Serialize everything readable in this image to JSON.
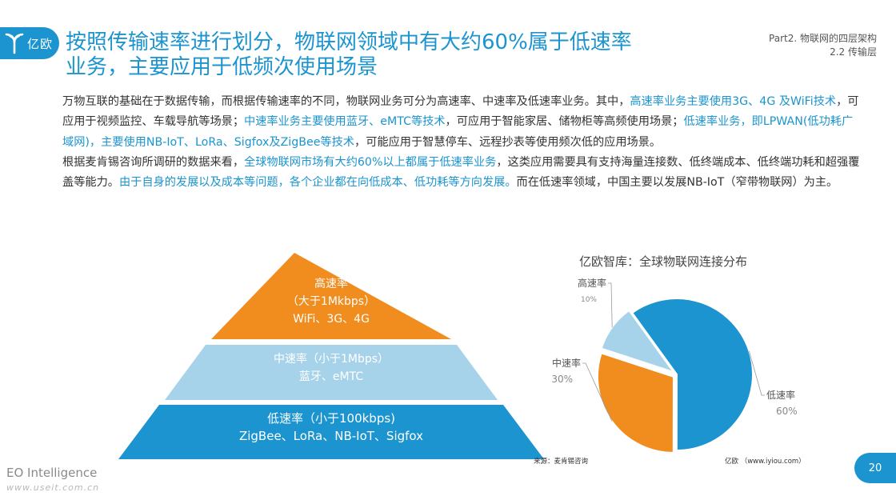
{
  "logo": {
    "text": "亿欧"
  },
  "title": {
    "line1": "按照传输速率进行划分，物联网领域中有大约60%属于低速率",
    "line2": "业务，主要应用于低频次使用场景"
  },
  "section": {
    "part": "Part2. 物联网的四层架构",
    "sub": "2.2 传输层"
  },
  "paragraph1": {
    "t1": "万物互联的基础在于数据传输，而根据传输速率的不同，物联网业务可分为高速率、中速率及低速率业务。其中，",
    "h1": "高速率业务主要使用3G、4G 及WiFi技术",
    "t2": "，可应用于视频监控、车载导航等场景；",
    "h2": "中速率业务主要使用蓝牙、eMTC等技术",
    "t3": "，可应用于智能家居、储物柜等高频使用场景；",
    "h3": "低速率业务，即LPWAN(低功耗广域网)，主要使用NB-IoT、LoRa、Sigfox及ZigBee等技术",
    "t4": "，可能应用于智慧停车、远程抄表等使用频次低的应用场景。"
  },
  "paragraph2": {
    "t1": "根据麦肯锡咨询所调研的数据来看，",
    "h1": "全球物联网市场有大约60%以上都属于低速率业务",
    "t2": "，这类应用需要具有支持海量连接数、低终端成本、低终端功耗和超强覆盖等能力。",
    "h2": "由于自身的发展以及成本等问题，各个企业都在向低成本、低功耗等方向发展。",
    "t3": "而在低速率领域，中国主要以发展NB-IoT（窄带物联网）为主。"
  },
  "pyramid": {
    "top": {
      "line1": "高速率",
      "line2": "（大于1Mkbps）",
      "line3": "WiFi、3G、4G",
      "color": "#f18c1e"
    },
    "middle": {
      "line1": "中速率（小于1Mbps）",
      "line2": "蓝牙、eMTC",
      "color": "#a7d3ea"
    },
    "bottom": {
      "line1": "低速率（小于100kbps)",
      "line2": "ZigBee、LoRa、NB-IoT、Sigfox",
      "color": "#1b94cf"
    }
  },
  "chart_data": {
    "type": "pie",
    "title": "亿欧智库：全球物联网连接分布",
    "slices": [
      {
        "label": "低速率",
        "value": 60,
        "display": "60%",
        "color": "#1b94cf"
      },
      {
        "label": "中速率",
        "value": 30,
        "display": "30%",
        "color": "#f18c1e"
      },
      {
        "label": "高速率",
        "value": 10,
        "display": "10%",
        "color": "#a7d3ea"
      }
    ]
  },
  "source": {
    "left": "来源：麦肯锡咨询",
    "right": "亿欧 （www.iyiou.com）"
  },
  "footer": {
    "brand": "EO Intelligence",
    "watermark": "www.useit.com.cn",
    "page": "20"
  }
}
